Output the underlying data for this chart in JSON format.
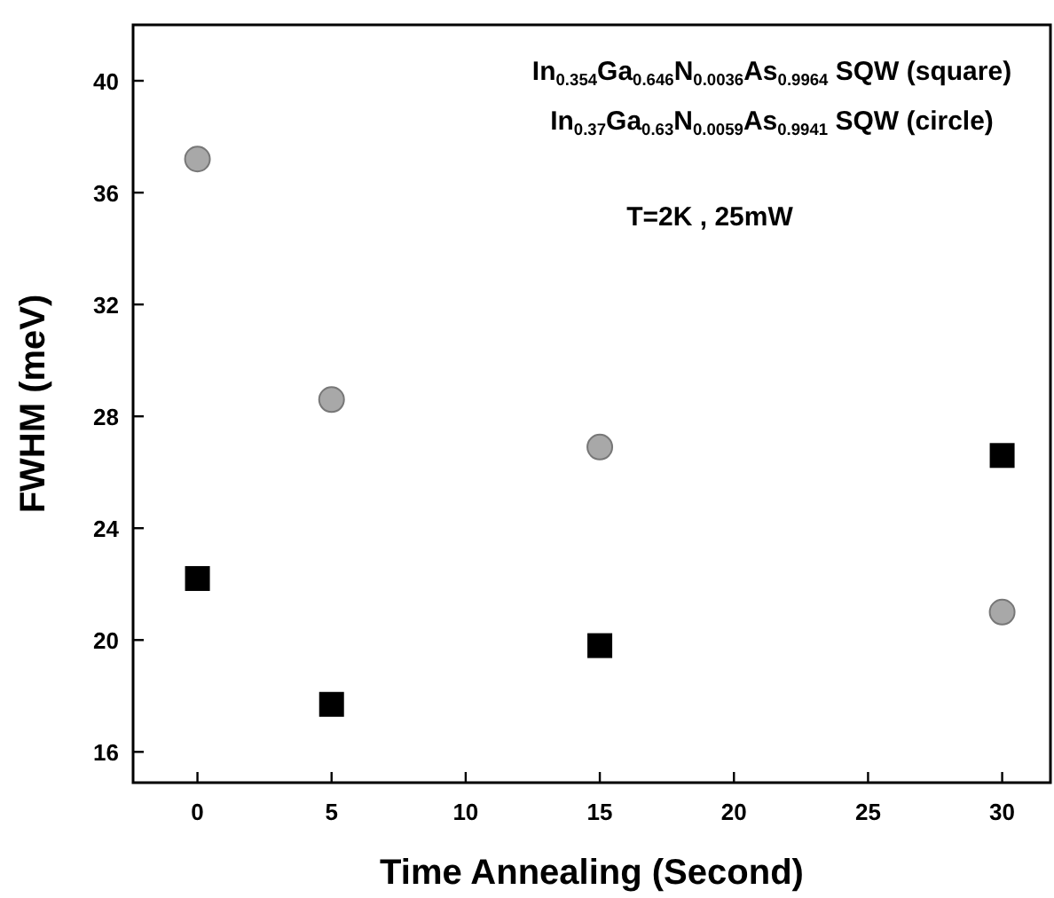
{
  "chart_data": {
    "type": "scatter",
    "xlabel": "Time Annealing (Second)",
    "ylabel": "FWHM (meV)",
    "x": [
      0,
      5,
      15,
      30
    ],
    "series": [
      {
        "color": "#000000",
        "marker": "square",
        "values": [
          22.2,
          17.7,
          19.8,
          26.6
        ]
      },
      {
        "color": "#a8a8a8",
        "marker": "circle",
        "values": [
          37.2,
          28.6,
          26.9,
          21.0
        ]
      }
    ],
    "xlim": [
      -2.4,
      31.8
    ],
    "ylim": [
      14.9,
      42
    ],
    "xticks": [
      0,
      5,
      10,
      15,
      20,
      25,
      30
    ],
    "yticks": [
      16,
      20,
      24,
      28,
      32,
      36,
      40
    ],
    "annotations": [
      "In$_{0.354}$Ga$_{0.646}$N$_{0.0036}$As$_{0.9964}$ SQW (square)",
      "In$_{0.37}$Ga$_{0.63}$N$_{0.0059}$As$_{0.9941}$ SQW (circle)",
      "T=2K , 25mW"
    ],
    "grid": false
  }
}
